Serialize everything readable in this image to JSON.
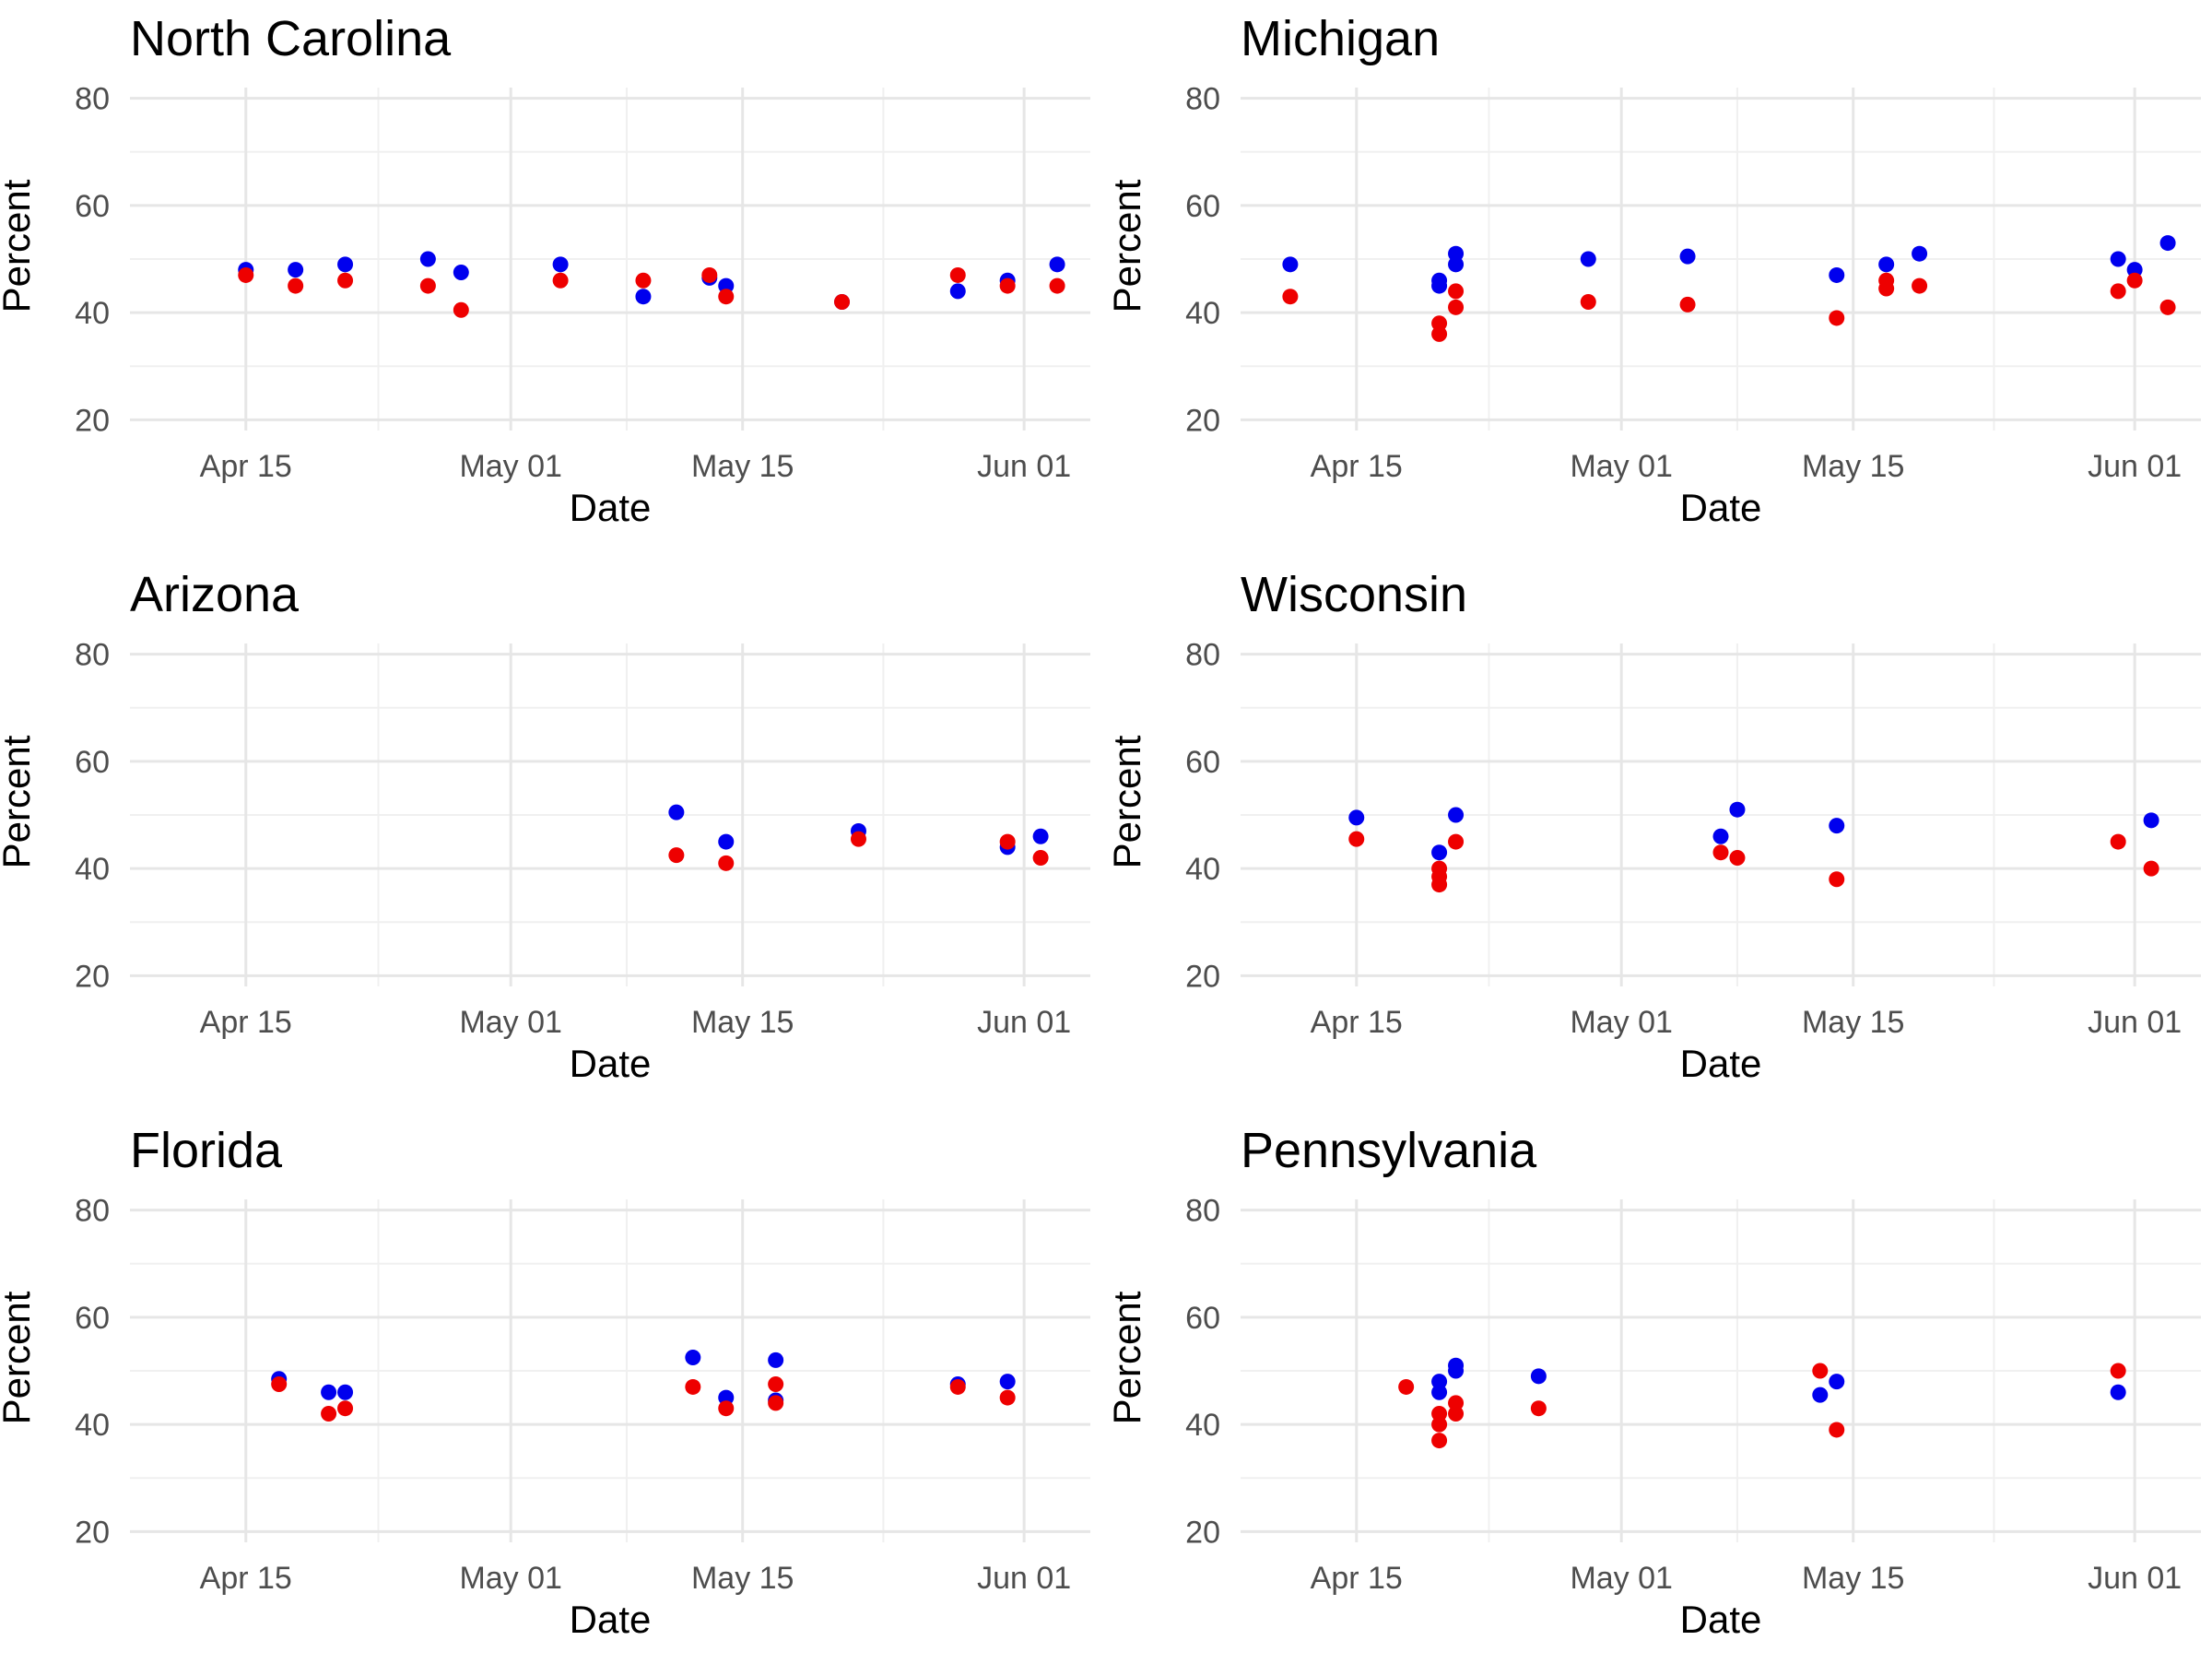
{
  "chart_data": [
    {
      "type": "scatter",
      "title": "North Carolina",
      "xlabel": "Date",
      "ylabel": "Percent",
      "ylim": [
        18,
        82
      ],
      "xlim": [
        "2024-04-08",
        "2024-06-05"
      ],
      "y_ticks": [
        20,
        40,
        60,
        80
      ],
      "x_ticks": [
        {
          "date": "2024-04-15",
          "label": "Apr 15"
        },
        {
          "date": "2024-05-01",
          "label": "May 01"
        },
        {
          "date": "2024-05-15",
          "label": "May 15"
        },
        {
          "date": "2024-06-01",
          "label": "Jun 01"
        }
      ],
      "grid": true,
      "series": [
        {
          "color": "#0000ee",
          "points": [
            {
              "x": "2024-04-15",
              "y": 48
            },
            {
              "x": "2024-04-18",
              "y": 48
            },
            {
              "x": "2024-04-21",
              "y": 49
            },
            {
              "x": "2024-04-26",
              "y": 50
            },
            {
              "x": "2024-04-28",
              "y": 47.5
            },
            {
              "x": "2024-05-04",
              "y": 49
            },
            {
              "x": "2024-05-09",
              "y": 43
            },
            {
              "x": "2024-05-13",
              "y": 46.5
            },
            {
              "x": "2024-05-14",
              "y": 45
            },
            {
              "x": "2024-05-21",
              "y": 42
            },
            {
              "x": "2024-05-28",
              "y": 44
            },
            {
              "x": "2024-05-31",
              "y": 46
            },
            {
              "x": "2024-06-03",
              "y": 49
            }
          ]
        },
        {
          "color": "#ee0000",
          "points": [
            {
              "x": "2024-04-15",
              "y": 47
            },
            {
              "x": "2024-04-18",
              "y": 45
            },
            {
              "x": "2024-04-21",
              "y": 46
            },
            {
              "x": "2024-04-26",
              "y": 45
            },
            {
              "x": "2024-04-28",
              "y": 40.5
            },
            {
              "x": "2024-05-04",
              "y": 46
            },
            {
              "x": "2024-05-09",
              "y": 46
            },
            {
              "x": "2024-05-13",
              "y": 47
            },
            {
              "x": "2024-05-14",
              "y": 43
            },
            {
              "x": "2024-05-21",
              "y": 42
            },
            {
              "x": "2024-05-28",
              "y": 47
            },
            {
              "x": "2024-05-31",
              "y": 45
            },
            {
              "x": "2024-06-03",
              "y": 45
            }
          ]
        }
      ]
    },
    {
      "type": "scatter",
      "title": "Michigan",
      "xlabel": "Date",
      "ylabel": "Percent",
      "ylim": [
        18,
        82
      ],
      "xlim": [
        "2024-04-08",
        "2024-06-05"
      ],
      "y_ticks": [
        20,
        40,
        60,
        80
      ],
      "x_ticks": [
        {
          "date": "2024-04-15",
          "label": "Apr 15"
        },
        {
          "date": "2024-05-01",
          "label": "May 01"
        },
        {
          "date": "2024-05-15",
          "label": "May 15"
        },
        {
          "date": "2024-06-01",
          "label": "Jun 01"
        }
      ],
      "grid": true,
      "series": [
        {
          "color": "#0000ee",
          "points": [
            {
              "x": "2024-04-11",
              "y": 49
            },
            {
              "x": "2024-04-20",
              "y": 46
            },
            {
              "x": "2024-04-20",
              "y": 45
            },
            {
              "x": "2024-04-21",
              "y": 51
            },
            {
              "x": "2024-04-21",
              "y": 49
            },
            {
              "x": "2024-04-29",
              "y": 50
            },
            {
              "x": "2024-05-05",
              "y": 50.5
            },
            {
              "x": "2024-05-14",
              "y": 47
            },
            {
              "x": "2024-05-17",
              "y": 49
            },
            {
              "x": "2024-05-19",
              "y": 51
            },
            {
              "x": "2024-05-31",
              "y": 50
            },
            {
              "x": "2024-06-01",
              "y": 48
            },
            {
              "x": "2024-06-03",
              "y": 53
            }
          ]
        },
        {
          "color": "#ee0000",
          "points": [
            {
              "x": "2024-04-11",
              "y": 43
            },
            {
              "x": "2024-04-20",
              "y": 38
            },
            {
              "x": "2024-04-20",
              "y": 36
            },
            {
              "x": "2024-04-21",
              "y": 44
            },
            {
              "x": "2024-04-21",
              "y": 41
            },
            {
              "x": "2024-04-29",
              "y": 42
            },
            {
              "x": "2024-05-05",
              "y": 41.5
            },
            {
              "x": "2024-05-14",
              "y": 39
            },
            {
              "x": "2024-05-17",
              "y": 46
            },
            {
              "x": "2024-05-17",
              "y": 44.5
            },
            {
              "x": "2024-05-19",
              "y": 45
            },
            {
              "x": "2024-05-31",
              "y": 44
            },
            {
              "x": "2024-06-01",
              "y": 46
            },
            {
              "x": "2024-06-03",
              "y": 41
            }
          ]
        }
      ]
    },
    {
      "type": "scatter",
      "title": "Arizona",
      "xlabel": "Date",
      "ylabel": "Percent",
      "ylim": [
        18,
        82
      ],
      "xlim": [
        "2024-04-08",
        "2024-06-05"
      ],
      "y_ticks": [
        20,
        40,
        60,
        80
      ],
      "x_ticks": [
        {
          "date": "2024-04-15",
          "label": "Apr 15"
        },
        {
          "date": "2024-05-01",
          "label": "May 01"
        },
        {
          "date": "2024-05-15",
          "label": "May 15"
        },
        {
          "date": "2024-06-01",
          "label": "Jun 01"
        }
      ],
      "grid": true,
      "series": [
        {
          "color": "#0000ee",
          "points": [
            {
              "x": "2024-05-11",
              "y": 50.5
            },
            {
              "x": "2024-05-14",
              "y": 45
            },
            {
              "x": "2024-05-22",
              "y": 47
            },
            {
              "x": "2024-05-31",
              "y": 44
            },
            {
              "x": "2024-06-02",
              "y": 46
            }
          ]
        },
        {
          "color": "#ee0000",
          "points": [
            {
              "x": "2024-05-11",
              "y": 42.5
            },
            {
              "x": "2024-05-14",
              "y": 41
            },
            {
              "x": "2024-05-22",
              "y": 45.5
            },
            {
              "x": "2024-05-31",
              "y": 45
            },
            {
              "x": "2024-06-02",
              "y": 42
            }
          ]
        }
      ]
    },
    {
      "type": "scatter",
      "title": "Wisconsin",
      "xlabel": "Date",
      "ylabel": "Percent",
      "ylim": [
        18,
        82
      ],
      "xlim": [
        "2024-04-08",
        "2024-06-05"
      ],
      "y_ticks": [
        20,
        40,
        60,
        80
      ],
      "x_ticks": [
        {
          "date": "2024-04-15",
          "label": "Apr 15"
        },
        {
          "date": "2024-05-01",
          "label": "May 01"
        },
        {
          "date": "2024-05-15",
          "label": "May 15"
        },
        {
          "date": "2024-06-01",
          "label": "Jun 01"
        }
      ],
      "grid": true,
      "series": [
        {
          "color": "#0000ee",
          "points": [
            {
              "x": "2024-04-15",
              "y": 49.5
            },
            {
              "x": "2024-04-20",
              "y": 43
            },
            {
              "x": "2024-04-21",
              "y": 50
            },
            {
              "x": "2024-05-07",
              "y": 46
            },
            {
              "x": "2024-05-08",
              "y": 51
            },
            {
              "x": "2024-05-14",
              "y": 48
            },
            {
              "x": "2024-06-02",
              "y": 49
            }
          ]
        },
        {
          "color": "#ee0000",
          "points": [
            {
              "x": "2024-04-15",
              "y": 45.5
            },
            {
              "x": "2024-04-20",
              "y": 40
            },
            {
              "x": "2024-04-20",
              "y": 38.5
            },
            {
              "x": "2024-04-20",
              "y": 37
            },
            {
              "x": "2024-04-21",
              "y": 45
            },
            {
              "x": "2024-05-07",
              "y": 43
            },
            {
              "x": "2024-05-08",
              "y": 42
            },
            {
              "x": "2024-05-14",
              "y": 38
            },
            {
              "x": "2024-05-31",
              "y": 45
            },
            {
              "x": "2024-06-02",
              "y": 40
            }
          ]
        }
      ]
    },
    {
      "type": "scatter",
      "title": "Florida",
      "xlabel": "Date",
      "ylabel": "Percent",
      "ylim": [
        18,
        82
      ],
      "xlim": [
        "2024-04-08",
        "2024-06-05"
      ],
      "y_ticks": [
        20,
        40,
        60,
        80
      ],
      "x_ticks": [
        {
          "date": "2024-04-15",
          "label": "Apr 15"
        },
        {
          "date": "2024-05-01",
          "label": "May 01"
        },
        {
          "date": "2024-05-15",
          "label": "May 15"
        },
        {
          "date": "2024-06-01",
          "label": "Jun 01"
        }
      ],
      "grid": true,
      "series": [
        {
          "color": "#0000ee",
          "points": [
            {
              "x": "2024-04-17",
              "y": 48.5
            },
            {
              "x": "2024-04-20",
              "y": 46
            },
            {
              "x": "2024-04-21",
              "y": 46
            },
            {
              "x": "2024-05-12",
              "y": 52.5
            },
            {
              "x": "2024-05-14",
              "y": 45
            },
            {
              "x": "2024-05-17",
              "y": 52
            },
            {
              "x": "2024-05-17",
              "y": 44.5
            },
            {
              "x": "2024-05-28",
              "y": 47.5
            },
            {
              "x": "2024-05-31",
              "y": 48
            }
          ]
        },
        {
          "color": "#ee0000",
          "points": [
            {
              "x": "2024-04-17",
              "y": 47.5
            },
            {
              "x": "2024-04-20",
              "y": 42
            },
            {
              "x": "2024-04-21",
              "y": 43
            },
            {
              "x": "2024-05-12",
              "y": 47
            },
            {
              "x": "2024-05-14",
              "y": 43
            },
            {
              "x": "2024-05-17",
              "y": 47.5
            },
            {
              "x": "2024-05-17",
              "y": 44
            },
            {
              "x": "2024-05-28",
              "y": 47
            },
            {
              "x": "2024-05-31",
              "y": 45
            }
          ]
        }
      ]
    },
    {
      "type": "scatter",
      "title": "Pennsylvania",
      "xlabel": "Date",
      "ylabel": "Percent",
      "ylim": [
        18,
        82
      ],
      "xlim": [
        "2024-04-08",
        "2024-06-05"
      ],
      "y_ticks": [
        20,
        40,
        60,
        80
      ],
      "x_ticks": [
        {
          "date": "2024-04-15",
          "label": "Apr 15"
        },
        {
          "date": "2024-05-01",
          "label": "May 01"
        },
        {
          "date": "2024-05-15",
          "label": "May 15"
        },
        {
          "date": "2024-06-01",
          "label": "Jun 01"
        }
      ],
      "grid": true,
      "series": [
        {
          "color": "#0000ee",
          "points": [
            {
              "x": "2024-04-20",
              "y": 48
            },
            {
              "x": "2024-04-20",
              "y": 46
            },
            {
              "x": "2024-04-21",
              "y": 51
            },
            {
              "x": "2024-04-21",
              "y": 50
            },
            {
              "x": "2024-04-26",
              "y": 49
            },
            {
              "x": "2024-05-13",
              "y": 45.5
            },
            {
              "x": "2024-05-14",
              "y": 48
            },
            {
              "x": "2024-05-31",
              "y": 46
            }
          ]
        },
        {
          "color": "#ee0000",
          "points": [
            {
              "x": "2024-04-18",
              "y": 47
            },
            {
              "x": "2024-04-20",
              "y": 42
            },
            {
              "x": "2024-04-20",
              "y": 40
            },
            {
              "x": "2024-04-20",
              "y": 37
            },
            {
              "x": "2024-04-21",
              "y": 44
            },
            {
              "x": "2024-04-21",
              "y": 42
            },
            {
              "x": "2024-04-26",
              "y": 43
            },
            {
              "x": "2024-05-13",
              "y": 50
            },
            {
              "x": "2024-05-14",
              "y": 39
            },
            {
              "x": "2024-05-31",
              "y": 50
            }
          ]
        }
      ]
    }
  ]
}
